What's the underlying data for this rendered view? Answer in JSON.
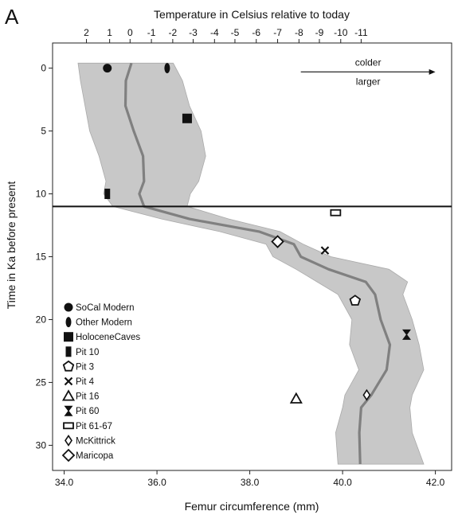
{
  "panel_label": "A",
  "chart_data": {
    "type": "line",
    "xlabel": "Femur circumference (mm)",
    "ylabel": "Time in Ka before present",
    "top_label": "Temperature in Celsius relative to today",
    "xlim": [
      33.75,
      42.35
    ],
    "ylim": [
      -2,
      32
    ],
    "y_inverted": true,
    "grid": false,
    "x_ticks": [
      34.0,
      36.0,
      38.0,
      40.0,
      42.0
    ],
    "x_tick_labels": [
      "34.0",
      "36.0",
      "38.0",
      "40.0",
      "42.0"
    ],
    "y_ticks": [
      0,
      5,
      10,
      15,
      20,
      25,
      30
    ],
    "y_tick_labels": [
      "0",
      "5",
      "10",
      "15",
      "20",
      "25",
      "30"
    ],
    "top_ticks": [
      2,
      1,
      0,
      -1,
      -2,
      -3,
      -4,
      -5,
      -6,
      -7,
      -8,
      -9,
      -10,
      -11
    ],
    "top_tick_labels": [
      "2",
      "1",
      "0",
      "-1",
      "-2",
      "-3",
      "-4",
      "-5",
      "-6",
      "-7",
      "-8",
      "-9",
      "-10",
      "-11"
    ],
    "top_tick_femur": [
      34.48,
      34.98,
      35.42,
      35.88,
      36.34,
      36.78,
      37.24,
      37.68,
      38.14,
      38.6,
      39.06,
      39.5,
      39.96,
      40.4
    ],
    "horizontal_line_y": 11,
    "arrow": {
      "from_x": 39.1,
      "to_x": 42.0,
      "y": 0.3,
      "label_above": "colder",
      "label_below": "larger"
    },
    "series": [
      {
        "y": [
          -0.4,
          1,
          3,
          5,
          7,
          9,
          10,
          11,
          12,
          13,
          14,
          15,
          16,
          17,
          18,
          20,
          22,
          24,
          26,
          27,
          29,
          31.5
        ],
        "x": [
          35.45,
          35.33,
          35.32,
          35.5,
          35.7,
          35.72,
          35.62,
          35.72,
          36.7,
          38.2,
          38.95,
          39.1,
          39.7,
          40.5,
          40.7,
          40.82,
          41.02,
          40.95,
          40.62,
          40.4,
          40.36,
          40.38
        ],
        "upper": [
          36.35,
          36.55,
          36.7,
          36.95,
          37.05,
          36.9,
          36.72,
          36.65,
          37.55,
          38.65,
          39.15,
          39.75,
          41.0,
          41.4,
          41.3,
          41.5,
          41.65,
          41.75,
          41.5,
          41.45,
          41.5,
          41.75
        ],
        "lower": [
          34.3,
          34.35,
          34.45,
          34.55,
          34.75,
          34.9,
          34.85,
          35.05,
          36.1,
          37.35,
          38.35,
          38.5,
          39.0,
          39.45,
          39.9,
          40.2,
          40.15,
          40.35,
          40.05,
          40.0,
          39.85,
          39.9
        ],
        "line_color": "#808080",
        "band_color": "#c8c8c8"
      }
    ],
    "points": [
      {
        "group": "SoCal Modern",
        "x": 34.93,
        "y": 0.0,
        "marker": "filled-circle"
      },
      {
        "group": "Other Modern",
        "x": 36.22,
        "y": 0.0,
        "marker": "filled-ellipse"
      },
      {
        "group": "HoloceneCaves",
        "x": 36.65,
        "y": 4.0,
        "marker": "filled-square"
      },
      {
        "group": "Pit 10",
        "x": 34.93,
        "y": 10.0,
        "marker": "filled-bar"
      },
      {
        "group": "Pit 61-67",
        "x": 39.85,
        "y": 11.5,
        "marker": "open-rect"
      },
      {
        "group": "Maricopa",
        "x": 38.6,
        "y": 13.8,
        "marker": "open-diamond"
      },
      {
        "group": "Pit 4",
        "x": 39.62,
        "y": 14.5,
        "marker": "x"
      },
      {
        "group": "Pit 3",
        "x": 40.27,
        "y": 18.5,
        "marker": "open-pentagon"
      },
      {
        "group": "Pit 60",
        "x": 41.38,
        "y": 21.2,
        "marker": "hourglass"
      },
      {
        "group": "McKittrick",
        "x": 40.52,
        "y": 26.0,
        "marker": "small-diamond"
      },
      {
        "group": "Pit 16",
        "x": 39.0,
        "y": 26.3,
        "marker": "open-triangle"
      }
    ],
    "legend": {
      "placement": "bottom-left",
      "entries": [
        {
          "label": "SoCal Modern",
          "marker": "filled-circle"
        },
        {
          "label": "Other Modern",
          "marker": "filled-ellipse"
        },
        {
          "label": "HoloceneCaves",
          "marker": "filled-square"
        },
        {
          "label": "Pit 10",
          "marker": "filled-bar"
        },
        {
          "label": "Pit 3",
          "marker": "open-pentagon"
        },
        {
          "label": "Pit 4",
          "marker": "x"
        },
        {
          "label": "Pit 16",
          "marker": "open-triangle"
        },
        {
          "label": "Pit 60",
          "marker": "hourglass"
        },
        {
          "label": "Pit 61-67",
          "marker": "open-rect"
        },
        {
          "label": "McKittrick",
          "marker": "small-diamond"
        },
        {
          "label": "Maricopa",
          "marker": "open-diamond"
        }
      ]
    }
  }
}
